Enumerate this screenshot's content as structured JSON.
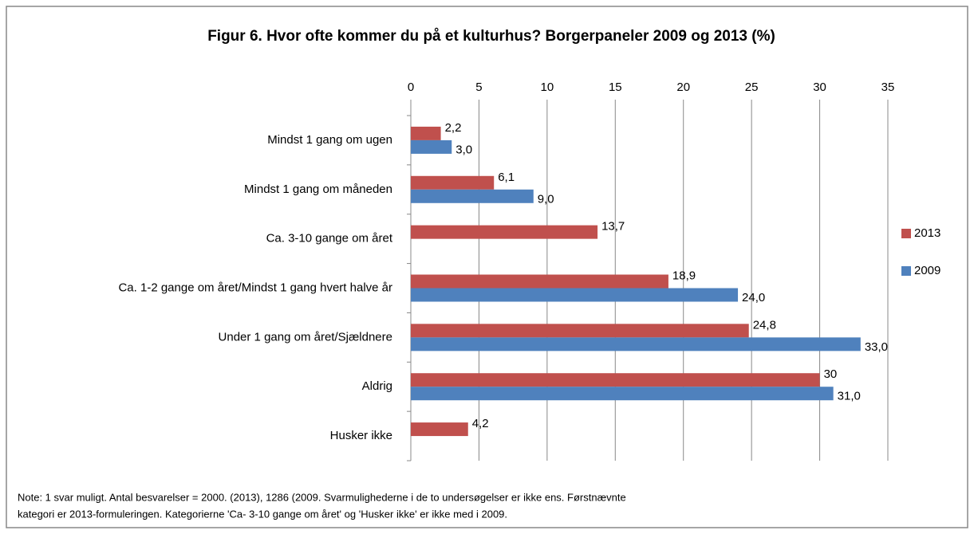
{
  "chart_data": {
    "type": "barh",
    "title": "Figur 6. Hvor ofte kommer du på et kulturhus? Borgerpaneler 2009 og 2013 (%)",
    "categories": [
      "Mindst 1 gang om ugen",
      "Mindst 1 gang om måneden",
      "Ca. 3-10 gange om året",
      "Ca. 1-2 gange om året/Mindst 1 gang hvert halve år",
      "Under 1 gang om året/Sjældnere",
      "Aldrig",
      "Husker ikke"
    ],
    "series": [
      {
        "name": "2013",
        "color": "#c0504d",
        "values": [
          2.2,
          6.1,
          13.7,
          18.9,
          24.8,
          30,
          4.2
        ],
        "value_labels": [
          "2,2",
          "6,1",
          "13,7",
          "18,9",
          "24,8",
          "30",
          "4,2"
        ]
      },
      {
        "name": "2009",
        "color": "#4f81bd",
        "values": [
          3.0,
          9.0,
          null,
          24.0,
          33.0,
          31.0,
          null
        ],
        "value_labels": [
          "3,0",
          "9,0",
          null,
          "24,0",
          "33,0",
          "31,0",
          null
        ]
      }
    ],
    "xlim": [
      0,
      35
    ],
    "xticks": [
      0,
      5,
      10,
      15,
      20,
      25,
      30,
      35
    ],
    "grid": true,
    "legend": "right",
    "note": [
      "Note: 1 svar muligt. Antal besvarelser = 2000. (2013), 1286 (2009. Svarmulighederne i de to undersøgelser er ikke ens. Førstnævnte",
      "kategori er 2013-formuleringen. Kategorierne 'Ca- 3-10 gange om året' og 'Husker ikke' er ikke med i 2009."
    ]
  }
}
